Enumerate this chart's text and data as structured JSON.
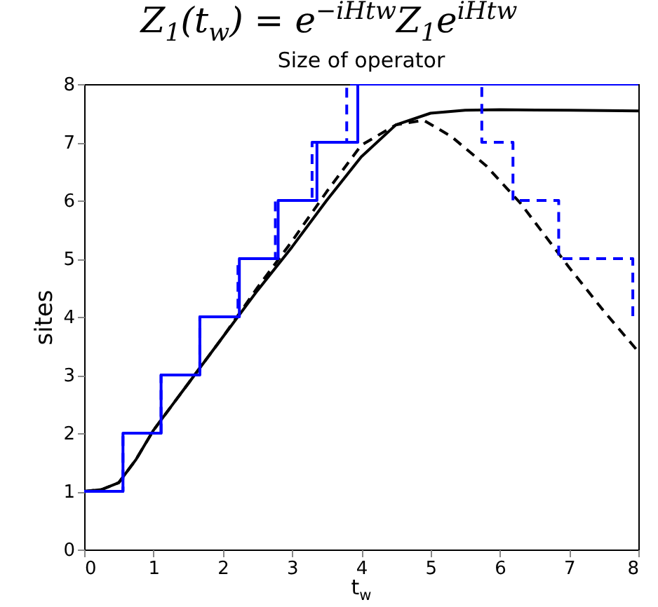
{
  "chart_data": {
    "type": "line",
    "title": "Z$_{1}$(t$_{w}$) = e$^{−iHtw}$Z$_{1}$e$^{iHtw}$",
    "subtitle": "Size of operator",
    "xlabel": "t$_{w}$",
    "ylabel": "sites",
    "xlim": [
      0,
      8
    ],
    "ylim": [
      0,
      8
    ],
    "xticks": [
      0,
      1,
      2,
      3,
      4,
      5,
      6,
      7,
      8
    ],
    "yticks": [
      0,
      1,
      2,
      3,
      4,
      5,
      6,
      7,
      8
    ],
    "series": [
      {
        "type": "line",
        "color": "#000000",
        "line_style": "solid",
        "x": [
          0,
          0.25,
          0.5,
          0.75,
          1,
          1.5,
          2,
          2.5,
          3,
          3.5,
          4,
          4.5,
          5,
          5.5,
          6,
          7,
          8
        ],
        "values": [
          1,
          1.03,
          1.15,
          1.55,
          2.05,
          2.85,
          3.65,
          4.45,
          5.2,
          6.0,
          6.75,
          7.3,
          7.5,
          7.55,
          7.56,
          7.55,
          7.54
        ]
      },
      {
        "type": "line",
        "color": "#000000",
        "line_style": "dashed",
        "x": [
          0,
          0.25,
          0.5,
          0.75,
          1,
          1.5,
          2,
          2.5,
          3,
          3.5,
          4,
          4.5,
          4.9,
          5.3,
          5.8,
          6.3,
          7,
          7.5,
          8
        ],
        "values": [
          1,
          1.03,
          1.15,
          1.55,
          2.05,
          2.85,
          3.65,
          4.5,
          5.3,
          6.15,
          6.95,
          7.3,
          7.38,
          7.1,
          6.6,
          5.95,
          4.85,
          4.1,
          3.4
        ]
      },
      {
        "type": "step",
        "color": "#0000ff",
        "line_style": "solid",
        "x": [
          0,
          0.56,
          1.11,
          1.67,
          2.24,
          2.8,
          3.36,
          3.95,
          8
        ],
        "values": [
          1,
          2,
          3,
          4,
          5,
          6,
          7,
          8,
          8
        ]
      },
      {
        "type": "step",
        "color": "#0000ff",
        "line_style": "dashed",
        "x": [
          0,
          0.56,
          1.11,
          1.67,
          2.22,
          2.76,
          3.29,
          3.79,
          5.74,
          6.19,
          6.85,
          7.92,
          8
        ],
        "values": [
          1,
          2,
          3,
          4,
          5,
          6,
          7,
          8,
          7,
          6,
          5,
          4,
          4
        ]
      }
    ]
  }
}
